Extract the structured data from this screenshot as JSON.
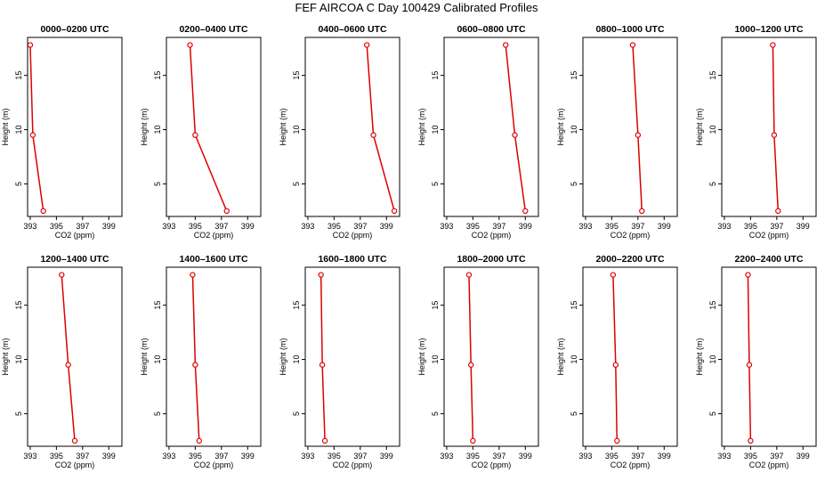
{
  "figure": {
    "title": "FEF  AIRCOA C  Day 100429  Calibrated Profiles",
    "line_color": "#dd0000"
  },
  "chart_data": [
    {
      "type": "line",
      "title": "0000–0200 UTC",
      "xlabel": "CO2 (ppm)",
      "ylabel": "Height (m)",
      "xlim": [
        392.8,
        400
      ],
      "ylim": [
        2,
        18.5
      ],
      "xticks": [
        393,
        395,
        397,
        399
      ],
      "yticks": [
        5,
        10,
        15
      ],
      "series": [
        {
          "values": [
            {
              "x": 393.0,
              "y": 17.8
            },
            {
              "x": 393.2,
              "y": 9.5
            },
            {
              "x": 394.0,
              "y": 2.5
            }
          ]
        }
      ]
    },
    {
      "type": "line",
      "title": "0200–0400 UTC",
      "xlabel": "CO2 (ppm)",
      "ylabel": "Height (m)",
      "xlim": [
        392.8,
        400
      ],
      "ylim": [
        2,
        18.5
      ],
      "xticks": [
        393,
        395,
        397,
        399
      ],
      "yticks": [
        5,
        10,
        15
      ],
      "series": [
        {
          "values": [
            {
              "x": 394.6,
              "y": 17.8
            },
            {
              "x": 395.0,
              "y": 9.5
            },
            {
              "x": 397.4,
              "y": 2.5
            }
          ]
        }
      ]
    },
    {
      "type": "line",
      "title": "0400–0600 UTC",
      "xlabel": "CO2 (ppm)",
      "ylabel": "Height (m)",
      "xlim": [
        392.8,
        400
      ],
      "ylim": [
        2,
        18.5
      ],
      "xticks": [
        393,
        395,
        397,
        399
      ],
      "yticks": [
        5,
        10,
        15
      ],
      "series": [
        {
          "values": [
            {
              "x": 397.5,
              "y": 17.8
            },
            {
              "x": 398.0,
              "y": 9.5
            },
            {
              "x": 399.6,
              "y": 2.5
            }
          ]
        }
      ]
    },
    {
      "type": "line",
      "title": "0600–0800 UTC",
      "xlabel": "CO2 (ppm)",
      "ylabel": "Height (m)",
      "xlim": [
        392.8,
        400
      ],
      "ylim": [
        2,
        18.5
      ],
      "xticks": [
        393,
        395,
        397,
        399
      ],
      "yticks": [
        5,
        10,
        15
      ],
      "series": [
        {
          "values": [
            {
              "x": 397.5,
              "y": 17.8
            },
            {
              "x": 398.2,
              "y": 9.5
            },
            {
              "x": 399.0,
              "y": 2.5
            }
          ]
        }
      ]
    },
    {
      "type": "line",
      "title": "0800–1000 UTC",
      "xlabel": "CO2 (ppm)",
      "ylabel": "Height (m)",
      "xlim": [
        392.8,
        400
      ],
      "ylim": [
        2,
        18.5
      ],
      "xticks": [
        393,
        395,
        397,
        399
      ],
      "yticks": [
        5,
        10,
        15
      ],
      "series": [
        {
          "values": [
            {
              "x": 396.6,
              "y": 17.8
            },
            {
              "x": 397.0,
              "y": 9.5
            },
            {
              "x": 397.3,
              "y": 2.5
            }
          ]
        }
      ]
    },
    {
      "type": "line",
      "title": "1000–1200 UTC",
      "xlabel": "CO2 (ppm)",
      "ylabel": "Height (m)",
      "xlim": [
        392.8,
        400
      ],
      "ylim": [
        2,
        18.5
      ],
      "xticks": [
        393,
        395,
        397,
        399
      ],
      "yticks": [
        5,
        10,
        15
      ],
      "series": [
        {
          "values": [
            {
              "x": 396.7,
              "y": 17.8
            },
            {
              "x": 396.8,
              "y": 9.5
            },
            {
              "x": 397.1,
              "y": 2.5
            }
          ]
        }
      ]
    },
    {
      "type": "line",
      "title": "1200–1400 UTC",
      "xlabel": "CO2 (ppm)",
      "ylabel": "Height (m)",
      "xlim": [
        392.8,
        400
      ],
      "ylim": [
        2,
        18.5
      ],
      "xticks": [
        393,
        395,
        397,
        399
      ],
      "yticks": [
        5,
        10,
        15
      ],
      "series": [
        {
          "values": [
            {
              "x": 395.4,
              "y": 17.8
            },
            {
              "x": 395.9,
              "y": 9.5
            },
            {
              "x": 396.4,
              "y": 2.5
            }
          ]
        }
      ]
    },
    {
      "type": "line",
      "title": "1400–1600 UTC",
      "xlabel": "CO2 (ppm)",
      "ylabel": "Height (m)",
      "xlim": [
        392.8,
        400
      ],
      "ylim": [
        2,
        18.5
      ],
      "xticks": [
        393,
        395,
        397,
        399
      ],
      "yticks": [
        5,
        10,
        15
      ],
      "series": [
        {
          "values": [
            {
              "x": 394.8,
              "y": 17.8
            },
            {
              "x": 395.0,
              "y": 9.5
            },
            {
              "x": 395.3,
              "y": 2.5
            }
          ]
        }
      ]
    },
    {
      "type": "line",
      "title": "1600–1800 UTC",
      "xlabel": "CO2 (ppm)",
      "ylabel": "Height (m)",
      "xlim": [
        392.8,
        400
      ],
      "ylim": [
        2,
        18.5
      ],
      "xticks": [
        393,
        395,
        397,
        399
      ],
      "yticks": [
        5,
        10,
        15
      ],
      "series": [
        {
          "values": [
            {
              "x": 394.0,
              "y": 17.8
            },
            {
              "x": 394.1,
              "y": 9.5
            },
            {
              "x": 394.3,
              "y": 2.5
            }
          ]
        }
      ]
    },
    {
      "type": "line",
      "title": "1800–2000 UTC",
      "xlabel": "CO2 (ppm)",
      "ylabel": "Height (m)",
      "xlim": [
        392.8,
        400
      ],
      "ylim": [
        2,
        18.5
      ],
      "xticks": [
        393,
        395,
        397,
        399
      ],
      "yticks": [
        5,
        10,
        15
      ],
      "series": [
        {
          "values": [
            {
              "x": 394.7,
              "y": 17.8
            },
            {
              "x": 394.85,
              "y": 9.5
            },
            {
              "x": 395.0,
              "y": 2.5
            }
          ]
        }
      ]
    },
    {
      "type": "line",
      "title": "2000–2200 UTC",
      "xlabel": "CO2 (ppm)",
      "ylabel": "Height (m)",
      "xlim": [
        392.8,
        400
      ],
      "ylim": [
        2,
        18.5
      ],
      "xticks": [
        393,
        395,
        397,
        399
      ],
      "yticks": [
        5,
        10,
        15
      ],
      "series": [
        {
          "values": [
            {
              "x": 395.1,
              "y": 17.8
            },
            {
              "x": 395.3,
              "y": 9.5
            },
            {
              "x": 395.4,
              "y": 2.5
            }
          ]
        }
      ]
    },
    {
      "type": "line",
      "title": "2200–2400 UTC",
      "xlabel": "CO2 (ppm)",
      "ylabel": "Height (m)",
      "xlim": [
        392.8,
        400
      ],
      "ylim": [
        2,
        18.5
      ],
      "xticks": [
        393,
        395,
        397,
        399
      ],
      "yticks": [
        5,
        10,
        15
      ],
      "series": [
        {
          "values": [
            {
              "x": 394.8,
              "y": 17.8
            },
            {
              "x": 394.9,
              "y": 9.5
            },
            {
              "x": 395.0,
              "y": 2.5
            }
          ]
        }
      ]
    }
  ]
}
